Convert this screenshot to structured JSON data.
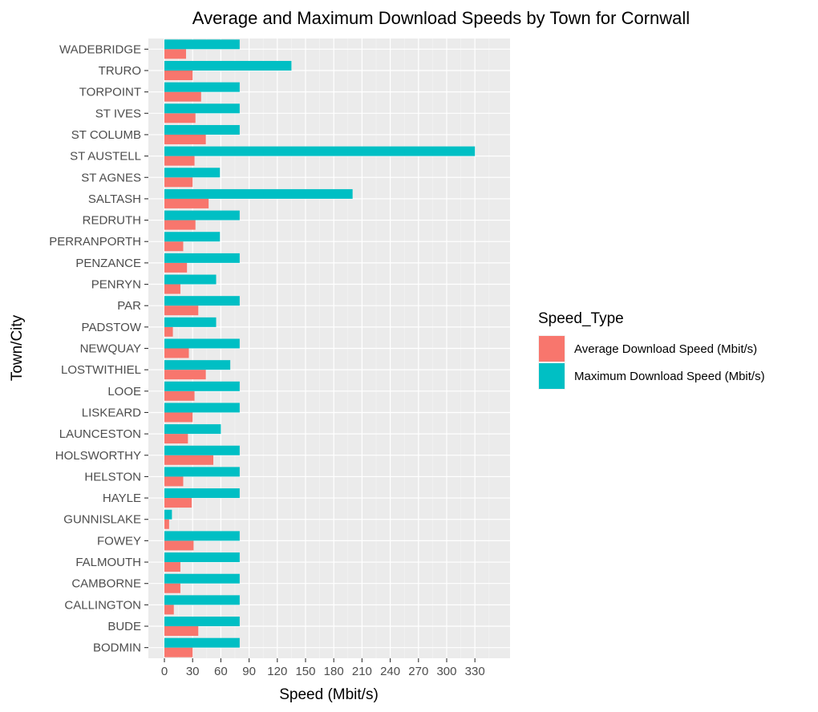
{
  "chart_data": {
    "type": "bar",
    "orientation": "horizontal",
    "title": "Average and Maximum Download Speeds by Town for Cornwall",
    "xlabel": "Speed (Mbit/s)",
    "ylabel": "Town/City",
    "xlim": [
      0,
      360
    ],
    "xticks": [
      0,
      30,
      60,
      90,
      120,
      150,
      180,
      210,
      240,
      270,
      300,
      330
    ],
    "grid": true,
    "legend": {
      "title": "Speed_Type",
      "position": "right"
    },
    "categories": [
      "BODMIN",
      "BUDE",
      "CALLINGTON",
      "CAMBORNE",
      "FALMOUTH",
      "FOWEY",
      "GUNNISLAKE",
      "HAYLE",
      "HELSTON",
      "HOLSWORTHY",
      "LAUNCESTON",
      "LISKEARD",
      "LOOE",
      "LOSTWITHIEL",
      "NEWQUAY",
      "PADSTOW",
      "PAR",
      "PENRYN",
      "PENZANCE",
      "PERRANPORTH",
      "REDRUTH",
      "SALTASH",
      "ST AGNES",
      "ST AUSTELL",
      "ST COLUMB",
      "ST IVES",
      "TORPOINT",
      "TRURO",
      "WADEBRIDGE"
    ],
    "series": [
      {
        "name": "Average Download Speed (Mbit/s)",
        "color": "#F8766D",
        "values": [
          30,
          36,
          10,
          17,
          17,
          31,
          5,
          29,
          20,
          52,
          25,
          30,
          32,
          44,
          26,
          9,
          36,
          17,
          24,
          20,
          33,
          47,
          30,
          32,
          44,
          33,
          39,
          30,
          23
        ]
      },
      {
        "name": "Maximum Download Speed (Mbit/s)",
        "color": "#00BFC4",
        "values": [
          80,
          80,
          80,
          80,
          80,
          80,
          8,
          80,
          80,
          80,
          60,
          80,
          80,
          70,
          80,
          55,
          80,
          55,
          80,
          59,
          80,
          200,
          59,
          330,
          80,
          80,
          80,
          135,
          80
        ]
      }
    ]
  }
}
